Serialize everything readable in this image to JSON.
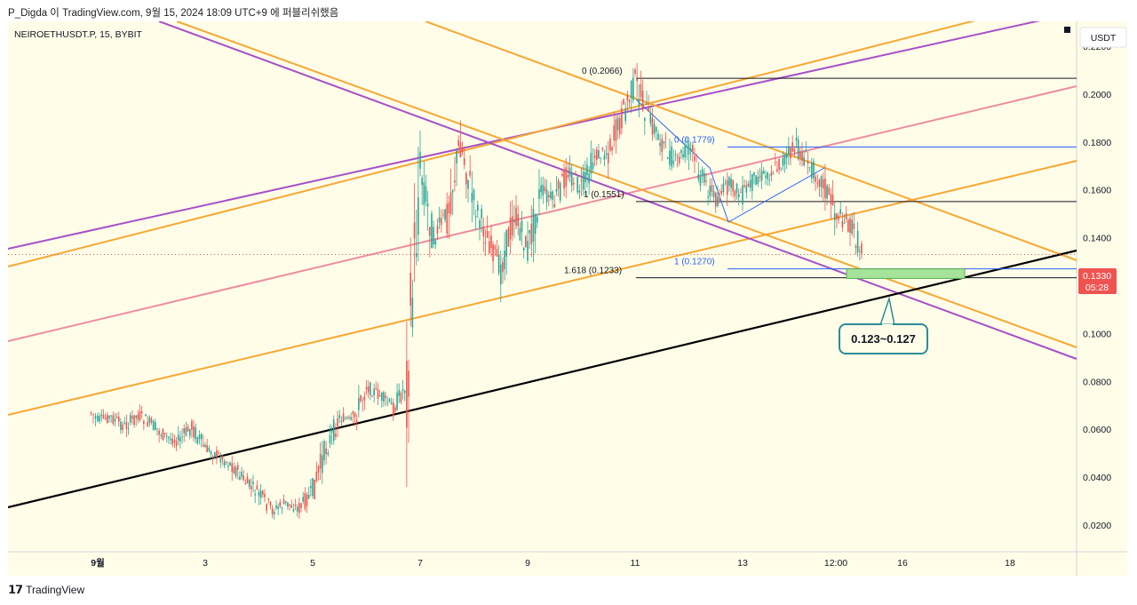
{
  "header": {
    "caption": "P_Digda 이 TradingView.com, 9월 15, 2024 18:09 UTC+9 에 퍼블리쉬했음"
  },
  "chart_data": {
    "type": "candlestick",
    "symbol_label": "NEIROETHUSDT.P, 15, BYBIT",
    "currency_label": "USDT",
    "y_ticks": [
      "0.2200",
      "0.2000",
      "0.1800",
      "0.1600",
      "0.1400",
      "0.1200",
      "0.1000",
      "0.0800",
      "0.0600",
      "0.0400",
      "0.0200"
    ],
    "x_ticks": [
      "9월",
      "3",
      "5",
      "7",
      "9",
      "11",
      "13",
      "12:00",
      "16",
      "18"
    ],
    "ylim": [
      0.014,
      0.2325
    ],
    "current_price": "0.1330",
    "countdown": "05:28",
    "price_path": [
      [
        "2024-08-31 21:00",
        0.067
      ],
      [
        "2024-09-01 00:00",
        0.064
      ],
      [
        "2024-09-01 06:00",
        0.065
      ],
      [
        "2024-09-01 12:00",
        0.061
      ],
      [
        "2024-09-01 18:00",
        0.066
      ],
      [
        "2024-09-02 00:00",
        0.062
      ],
      [
        "2024-09-02 06:00",
        0.057
      ],
      [
        "2024-09-02 12:00",
        0.055
      ],
      [
        "2024-09-02 18:00",
        0.061
      ],
      [
        "2024-09-03 00:00",
        0.052
      ],
      [
        "2024-09-03 06:00",
        0.049
      ],
      [
        "2024-09-03 12:00",
        0.045
      ],
      [
        "2024-09-03 18:00",
        0.038
      ],
      [
        "2024-09-04 00:00",
        0.033
      ],
      [
        "2024-09-04 06:00",
        0.026
      ],
      [
        "2024-09-04 12:00",
        0.029
      ],
      [
        "2024-09-04 18:00",
        0.027
      ],
      [
        "2024-09-05 00:00",
        0.034
      ],
      [
        "2024-09-05 06:00",
        0.052
      ],
      [
        "2024-09-05 12:00",
        0.065
      ],
      [
        "2024-09-05 18:00",
        0.063
      ],
      [
        "2024-09-06 00:00",
        0.078
      ],
      [
        "2024-09-06 06:00",
        0.074
      ],
      [
        "2024-09-06 12:00",
        0.069
      ],
      [
        "2024-09-06 18:00",
        0.079
      ],
      [
        "2024-09-07 00:00",
        0.17
      ],
      [
        "2024-09-07 06:00",
        0.14
      ],
      [
        "2024-09-07 12:00",
        0.15
      ],
      [
        "2024-09-07 18:00",
        0.18
      ],
      [
        "2024-09-08 00:00",
        0.155
      ],
      [
        "2024-09-08 06:00",
        0.14
      ],
      [
        "2024-09-08 12:00",
        0.127
      ],
      [
        "2024-09-08 18:00",
        0.15
      ],
      [
        "2024-09-09 00:00",
        0.135
      ],
      [
        "2024-09-09 06:00",
        0.16
      ],
      [
        "2024-09-09 12:00",
        0.155
      ],
      [
        "2024-09-09 18:00",
        0.168
      ],
      [
        "2024-09-10 00:00",
        0.16
      ],
      [
        "2024-09-10 06:00",
        0.174
      ],
      [
        "2024-09-10 12:00",
        0.176
      ],
      [
        "2024-09-10 18:00",
        0.19
      ],
      [
        "2024-09-11 00:00",
        0.205
      ],
      [
        "2024-09-11 06:00",
        0.19
      ],
      [
        "2024-09-11 12:00",
        0.18
      ],
      [
        "2024-09-11 18:00",
        0.171
      ],
      [
        "2024-09-12 00:00",
        0.178
      ],
      [
        "2024-09-12 06:00",
        0.165
      ],
      [
        "2024-09-12 12:00",
        0.156
      ],
      [
        "2024-09-12 18:00",
        0.162
      ],
      [
        "2024-09-13 00:00",
        0.158
      ],
      [
        "2024-09-13 06:00",
        0.165
      ],
      [
        "2024-09-13 12:00",
        0.167
      ],
      [
        "2024-09-13 18:00",
        0.172
      ],
      [
        "2024-09-14 00:00",
        0.178
      ],
      [
        "2024-09-14 06:00",
        0.17
      ],
      [
        "2024-09-14 12:00",
        0.163
      ],
      [
        "2024-09-14 18:00",
        0.15
      ],
      [
        "2024-09-15 00:00",
        0.145
      ],
      [
        "2024-09-15 06:00",
        0.133
      ]
    ],
    "fib_levels": [
      {
        "label": "0 (0.2066)",
        "price": 0.2066,
        "color": "#131722"
      },
      {
        "label": "1 (0.1551)",
        "price": 0.1551,
        "color": "#131722"
      },
      {
        "label": "1.618 (0.1233)",
        "price": 0.1233,
        "color": "#131722"
      },
      {
        "label": "0 (0.1779)",
        "price": 0.1779,
        "color": "#2962ff"
      },
      {
        "label": "1 (0.1270)",
        "price": 0.127,
        "color": "#2962ff"
      }
    ],
    "target_zone": {
      "low": 0.123,
      "high": 0.127,
      "label": "0.123~0.127"
    },
    "colors": {
      "up": "#26a69a",
      "down": "#ef5350",
      "orange": "#f7a733",
      "purple": "#a64fc8",
      "pink": "#ee8ca0",
      "black": "#000000",
      "blue": "#2962ff",
      "zone": "#a5e39a",
      "callout": "#2b8c99",
      "background": "#fffde8"
    }
  },
  "footer": {
    "brand": "TradingView"
  }
}
